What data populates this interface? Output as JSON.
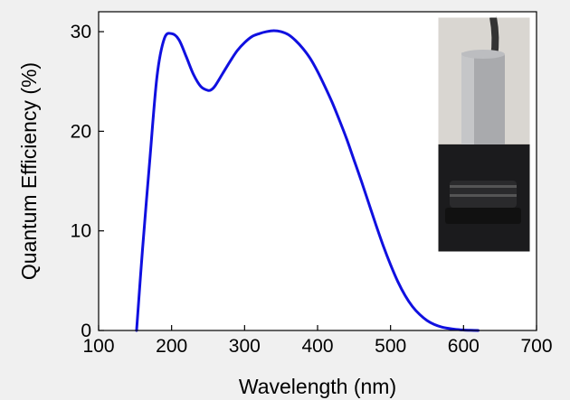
{
  "chart_data": {
    "type": "line",
    "title": "",
    "xlabel": "Wavelength (nm)",
    "ylabel": "Quantum Efficiency (%)",
    "xlim": [
      100,
      700
    ],
    "ylim": [
      0,
      32
    ],
    "xticks": [
      100,
      200,
      300,
      400,
      500,
      600,
      700
    ],
    "xtick_labels": [
      "100",
      "200",
      "300",
      "400",
      "500",
      "600",
      "700"
    ],
    "yticks": [
      0,
      10,
      20,
      30
    ],
    "ytick_labels": [
      "0",
      "10",
      "20",
      "30"
    ],
    "grid": false,
    "legend": "none",
    "series": [
      {
        "color": "#1010e0",
        "x": [
          152,
          160,
          170,
          180,
          190,
          200,
          210,
          220,
          230,
          240,
          250,
          255,
          260,
          270,
          280,
          290,
          300,
          310,
          320,
          330,
          340,
          350,
          360,
          370,
          380,
          390,
          400,
          410,
          420,
          430,
          440,
          450,
          460,
          470,
          480,
          490,
          500,
          510,
          520,
          530,
          540,
          550,
          560,
          570,
          580,
          590,
          600,
          610,
          620
        ],
        "y": [
          0,
          8,
          17,
          25.5,
          29.3,
          29.8,
          29.2,
          27.5,
          25.7,
          24.5,
          24.1,
          24.2,
          24.6,
          25.8,
          27,
          28.1,
          28.9,
          29.5,
          29.8,
          30,
          30.1,
          30,
          29.7,
          29.1,
          28.3,
          27.3,
          26,
          24.5,
          22.9,
          21.1,
          19.2,
          17.1,
          15,
          12.8,
          10.6,
          8.5,
          6.6,
          4.9,
          3.5,
          2.4,
          1.6,
          1.0,
          0.6,
          0.35,
          0.2,
          0.1,
          0.05,
          0.02,
          0
        ]
      }
    ]
  },
  "inset_photo": {
    "icon": "photomultiplier-detector-photo"
  }
}
